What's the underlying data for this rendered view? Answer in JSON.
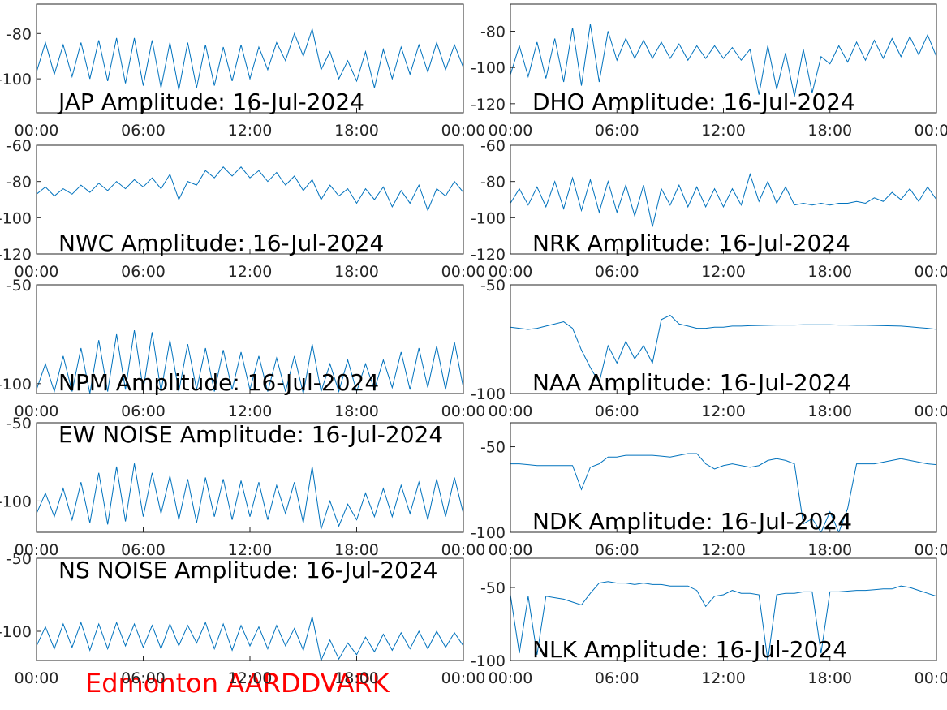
{
  "chart_data": [
    {
      "type": "line",
      "title": "JAP Amplitude: 16-Jul-2024",
      "color": "#0072bd",
      "x": [
        0,
        0.5,
        1,
        1.5,
        2,
        2.5,
        3,
        3.5,
        4,
        4.5,
        5,
        5.5,
        6,
        6.5,
        7,
        7.5,
        8,
        8.5,
        9,
        9.5,
        10,
        10.5,
        11,
        11.5,
        12,
        12.5,
        13,
        13.5,
        14,
        14.5,
        15,
        15.5,
        16,
        16.5,
        17,
        17.5,
        18,
        18.5,
        19,
        19.5,
        20,
        20.5,
        21,
        21.5,
        22,
        22.5,
        23,
        23.5,
        24
      ],
      "values": [
        -97,
        -84,
        -98,
        -85,
        -99,
        -84,
        -100,
        -83,
        -101,
        -82,
        -102,
        -82,
        -103,
        -83,
        -104,
        -84,
        -105,
        -84,
        -104,
        -85,
        -103,
        -86,
        -101,
        -85,
        -100,
        -86,
        -96,
        -84,
        -92,
        -80,
        -90,
        -78,
        -96,
        -88,
        -100,
        -92,
        -101,
        -88,
        -104,
        -87,
        -100,
        -86,
        -98,
        -85,
        -97,
        -84,
        -96,
        -85,
        -95
      ],
      "xlim": [
        0,
        24
      ],
      "xticks": [
        {
          "value": 0,
          "label": "00:00"
        },
        {
          "value": 6,
          "label": "06:00"
        },
        {
          "value": 12,
          "label": "12:00"
        },
        {
          "value": 18,
          "label": "18:00"
        },
        {
          "value": 24,
          "label": "00:00"
        }
      ],
      "ylim": [
        -115,
        -67
      ],
      "yticks": [
        -80,
        -100
      ]
    },
    {
      "type": "line",
      "title": "DHO Amplitude: 16-Jul-2024",
      "color": "#0072bd",
      "x": [
        0,
        0.5,
        1,
        1.5,
        2,
        2.5,
        3,
        3.5,
        4,
        4.5,
        5,
        5.5,
        6,
        6.5,
        7,
        7.5,
        8,
        8.5,
        9,
        9.5,
        10,
        10.5,
        11,
        11.5,
        12,
        12.5,
        13,
        13.5,
        14,
        14.5,
        15,
        15.5,
        16,
        16.5,
        17,
        17.5,
        18,
        18.5,
        19,
        19.5,
        20,
        20.5,
        21,
        21.5,
        22,
        22.5,
        23,
        23.5,
        24
      ],
      "values": [
        -104,
        -88,
        -105,
        -86,
        -106,
        -84,
        -108,
        -78,
        -110,
        -76,
        -108,
        -80,
        -96,
        -84,
        -95,
        -85,
        -95,
        -86,
        -95,
        -87,
        -96,
        -88,
        -95,
        -88,
        -95,
        -89,
        -96,
        -90,
        -115,
        -88,
        -112,
        -92,
        -116,
        -90,
        -114,
        -94,
        -98,
        -88,
        -97,
        -86,
        -96,
        -85,
        -95,
        -84,
        -94,
        -83,
        -93,
        -82,
        -94
      ],
      "xlim": [
        0,
        24
      ],
      "xticks": [
        {
          "value": 0,
          "label": "00:00"
        },
        {
          "value": 6,
          "label": "06:00"
        },
        {
          "value": 12,
          "label": "12:00"
        },
        {
          "value": 18,
          "label": "18:00"
        },
        {
          "value": 24,
          "label": "00:00"
        }
      ],
      "ylim": [
        -125,
        -65
      ],
      "yticks": [
        -80,
        -100,
        -120
      ]
    },
    {
      "type": "line",
      "title": "NWC Amplitude: 16-Jul-2024",
      "color": "#0072bd",
      "x": [
        0,
        0.5,
        1,
        1.5,
        2,
        2.5,
        3,
        3.5,
        4,
        4.5,
        5,
        5.5,
        6,
        6.5,
        7,
        7.5,
        8,
        8.5,
        9,
        9.5,
        10,
        10.5,
        11,
        11.5,
        12,
        12.5,
        13,
        13.5,
        14,
        14.5,
        15,
        15.5,
        16,
        16.5,
        17,
        17.5,
        18,
        18.5,
        19,
        19.5,
        20,
        20.5,
        21,
        21.5,
        22,
        22.5,
        23,
        23.5,
        24
      ],
      "values": [
        -87,
        -83,
        -88,
        -84,
        -87,
        -82,
        -86,
        -81,
        -85,
        -80,
        -84,
        -79,
        -83,
        -78,
        -84,
        -76,
        -90,
        -80,
        -82,
        -74,
        -78,
        -72,
        -77,
        -72,
        -78,
        -74,
        -80,
        -75,
        -82,
        -77,
        -85,
        -79,
        -90,
        -82,
        -88,
        -84,
        -92,
        -84,
        -90,
        -83,
        -94,
        -85,
        -92,
        -82,
        -96,
        -84,
        -88,
        -80,
        -86
      ],
      "xlim": [
        0,
        24
      ],
      "xticks": [
        {
          "value": 0,
          "label": "00:00"
        },
        {
          "value": 6,
          "label": "06:00"
        },
        {
          "value": 12,
          "label": "12:00"
        },
        {
          "value": 18,
          "label": "18:00"
        },
        {
          "value": 24,
          "label": "00:00"
        }
      ],
      "ylim": [
        -120,
        -60
      ],
      "yticks": [
        -60,
        -80,
        -100,
        -120
      ]
    },
    {
      "type": "line",
      "title": "NRK Amplitude: 16-Jul-2024",
      "color": "#0072bd",
      "x": [
        0,
        0.5,
        1,
        1.5,
        2,
        2.5,
        3,
        3.5,
        4,
        4.5,
        5,
        5.5,
        6,
        6.5,
        7,
        7.5,
        8,
        8.5,
        9,
        9.5,
        10,
        10.5,
        11,
        11.5,
        12,
        12.5,
        13,
        13.5,
        14,
        14.5,
        15,
        15.5,
        16,
        16.5,
        17,
        17.5,
        18,
        18.5,
        19,
        19.5,
        20,
        20.5,
        21,
        21.5,
        22,
        22.5,
        23,
        23.5,
        24
      ],
      "values": [
        -92,
        -84,
        -93,
        -83,
        -94,
        -80,
        -95,
        -78,
        -96,
        -79,
        -97,
        -80,
        -97,
        -82,
        -99,
        -82,
        -105,
        -84,
        -93,
        -82,
        -94,
        -83,
        -94,
        -84,
        -94,
        -84,
        -93,
        -76,
        -91,
        -80,
        -92,
        -83,
        -93,
        -92,
        -93,
        -92,
        -93,
        -92,
        -92,
        -91,
        -92,
        -89,
        -91,
        -86,
        -90,
        -84,
        -91,
        -83,
        -90
      ],
      "xlim": [
        0,
        24
      ],
      "xticks": [
        {
          "value": 0,
          "label": "00:00"
        },
        {
          "value": 6,
          "label": "06:00"
        },
        {
          "value": 12,
          "label": "12:00"
        },
        {
          "value": 18,
          "label": "18:00"
        },
        {
          "value": 24,
          "label": "00:00"
        }
      ],
      "ylim": [
        -120,
        -60
      ],
      "yticks": [
        -60,
        -80,
        -100,
        -120
      ]
    },
    {
      "type": "line",
      "title": "NPM Amplitude: 16-Jul-2024",
      "color": "#0072bd",
      "x": [
        0,
        0.5,
        1,
        1.5,
        2,
        2.5,
        3,
        3.5,
        4,
        4.5,
        5,
        5.5,
        6,
        6.5,
        7,
        7.5,
        8,
        8.5,
        9,
        9.5,
        10,
        10.5,
        11,
        11.5,
        12,
        12.5,
        13,
        13.5,
        14,
        14.5,
        15,
        15.5,
        16,
        16.5,
        17,
        17.5,
        18,
        18.5,
        19,
        19.5,
        20,
        20.5,
        21,
        21.5,
        22,
        22.5,
        23,
        23.5,
        24
      ],
      "values": [
        -103,
        -90,
        -104,
        -86,
        -104,
        -82,
        -105,
        -78,
        -104,
        -75,
        -103,
        -73,
        -103,
        -74,
        -104,
        -78,
        -104,
        -80,
        -103,
        -82,
        -104,
        -83,
        -103,
        -84,
        -103,
        -86,
        -104,
        -87,
        -104,
        -86,
        -105,
        -80,
        -104,
        -90,
        -104,
        -88,
        -104,
        -90,
        -103,
        -88,
        -102,
        -84,
        -103,
        -82,
        -102,
        -81,
        -103,
        -79,
        -102
      ],
      "xlim": [
        0,
        24
      ],
      "xticks": [
        {
          "value": 0,
          "label": "00:00"
        },
        {
          "value": 6,
          "label": "06:00"
        },
        {
          "value": 12,
          "label": "12:00"
        },
        {
          "value": 18,
          "label": "18:00"
        },
        {
          "value": 24,
          "label": "00:00"
        }
      ],
      "ylim": [
        -105,
        -50
      ],
      "yticks": [
        -50,
        -100
      ]
    },
    {
      "type": "line",
      "title": "NAA Amplitude: 16-Jul-2024",
      "color": "#0072bd",
      "x": [
        0,
        0.5,
        1,
        1.5,
        2,
        2.5,
        3,
        3.5,
        4,
        4.5,
        5,
        5.5,
        6,
        6.5,
        7,
        7.5,
        8,
        8.5,
        9,
        9.5,
        10,
        10.5,
        11,
        11.5,
        12,
        12.5,
        13,
        13.5,
        14,
        14.5,
        15,
        15.5,
        16,
        16.5,
        17,
        17.5,
        18,
        18.5,
        19,
        19.5,
        20,
        20.5,
        21,
        21.5,
        22,
        22.5,
        23,
        23.5,
        24
      ],
      "values": [
        -69.5,
        -70,
        -70.5,
        -70,
        -69,
        -68,
        -67,
        -70,
        -80,
        -88,
        -95,
        -78,
        -86,
        -76,
        -84,
        -78,
        -86,
        -66,
        -64,
        -68,
        -69,
        -70,
        -70,
        -69.5,
        -69.5,
        -69,
        -69,
        -68.8,
        -68.7,
        -68.6,
        -68.5,
        -68.5,
        -68.5,
        -68.4,
        -68.4,
        -68.4,
        -68.4,
        -68.5,
        -68.5,
        -68.6,
        -68.6,
        -68.7,
        -68.8,
        -68.9,
        -69,
        -69.3,
        -69.7,
        -70,
        -70.5
      ],
      "xlim": [
        0,
        24
      ],
      "xticks": [
        {
          "value": 0,
          "label": "00:00"
        },
        {
          "value": 6,
          "label": "06:00"
        },
        {
          "value": 12,
          "label": "12:00"
        },
        {
          "value": 18,
          "label": "18:00"
        },
        {
          "value": 24,
          "label": "00:00"
        }
      ],
      "ylim": [
        -100,
        -50
      ],
      "yticks": [
        -50,
        -100
      ]
    },
    {
      "type": "line",
      "title": "EW NOISE Amplitude: 16-Jul-2024",
      "color": "#0072bd",
      "x": [
        0,
        0.5,
        1,
        1.5,
        2,
        2.5,
        3,
        3.5,
        4,
        4.5,
        5,
        5.5,
        6,
        6.5,
        7,
        7.5,
        8,
        8.5,
        9,
        9.5,
        10,
        10.5,
        11,
        11.5,
        12,
        12.5,
        13,
        13.5,
        14,
        14.5,
        15,
        15.5,
        16,
        16.5,
        17,
        17.5,
        18,
        18.5,
        19,
        19.5,
        20,
        20.5,
        21,
        21.5,
        22,
        22.5,
        23,
        23.5,
        24
      ],
      "values": [
        -108,
        -95,
        -110,
        -92,
        -112,
        -88,
        -114,
        -82,
        -115,
        -78,
        -113,
        -76,
        -110,
        -82,
        -108,
        -84,
        -112,
        -86,
        -114,
        -85,
        -110,
        -86,
        -112,
        -87,
        -110,
        -88,
        -112,
        -90,
        -108,
        -88,
        -114,
        -78,
        -118,
        -100,
        -116,
        -102,
        -112,
        -95,
        -110,
        -92,
        -110,
        -90,
        -108,
        -88,
        -112,
        -86,
        -110,
        -85,
        -108
      ],
      "xlim": [
        0,
        24
      ],
      "xticks": [
        {
          "value": 0,
          "label": "00:00"
        },
        {
          "value": 6,
          "label": "06:00"
        },
        {
          "value": 12,
          "label": "12:00"
        },
        {
          "value": 18,
          "label": "18:00"
        },
        {
          "value": 24,
          "label": "00:00"
        }
      ],
      "ylim": [
        -120,
        -50
      ],
      "yticks": [
        -50,
        -100
      ]
    },
    {
      "type": "line",
      "title": "NDK Amplitude: 16-Jul-2024",
      "color": "#0072bd",
      "x": [
        0,
        0.5,
        1,
        1.5,
        2,
        2.5,
        3,
        3.5,
        4,
        4.5,
        5,
        5.5,
        6,
        6.5,
        7,
        7.5,
        8,
        8.5,
        9,
        9.5,
        10,
        10.5,
        11,
        11.5,
        12,
        12.5,
        13,
        13.5,
        14,
        14.5,
        15,
        15.5,
        16,
        16.5,
        17,
        17.5,
        18,
        18.5,
        19,
        19.5,
        20,
        20.5,
        21,
        21.5,
        22,
        22.5,
        23,
        23.5,
        24
      ],
      "values": [
        -60,
        -60,
        -60.5,
        -61,
        -61,
        -61,
        -61,
        -61,
        -75,
        -62,
        -60,
        -56,
        -56,
        -55,
        -55,
        -55,
        -55,
        -55.5,
        -56,
        -55,
        -54,
        -54,
        -60,
        -63,
        -61,
        -60,
        -61,
        -62,
        -61,
        -58,
        -57,
        -58,
        -60,
        -95,
        -92,
        -100,
        -88,
        -100,
        -86,
        -60,
        -60,
        -60,
        -59,
        -58,
        -57,
        -58,
        -59,
        -60,
        -60.5
      ],
      "xlim": [
        0,
        24
      ],
      "xticks": [
        {
          "value": 0,
          "label": "00:00"
        },
        {
          "value": 6,
          "label": "06:00"
        },
        {
          "value": 12,
          "label": "12:00"
        },
        {
          "value": 18,
          "label": "18:00"
        },
        {
          "value": 24,
          "label": "00:00"
        }
      ],
      "ylim": [
        -100,
        -36
      ],
      "yticks": [
        -50,
        -100
      ]
    },
    {
      "type": "line",
      "title": "NS NOISE Amplitude: 16-Jul-2024",
      "color": "#0072bd",
      "x": [
        0,
        0.5,
        1,
        1.5,
        2,
        2.5,
        3,
        3.5,
        4,
        4.5,
        5,
        5.5,
        6,
        6.5,
        7,
        7.5,
        8,
        8.5,
        9,
        9.5,
        10,
        10.5,
        11,
        11.5,
        12,
        12.5,
        13,
        13.5,
        14,
        14.5,
        15,
        15.5,
        16,
        16.5,
        17,
        17.5,
        18,
        18.5,
        19,
        19.5,
        20,
        20.5,
        21,
        21.5,
        22,
        22.5,
        23,
        23.5,
        24
      ],
      "values": [
        -110,
        -97,
        -112,
        -95,
        -111,
        -94,
        -113,
        -95,
        -112,
        -94,
        -110,
        -95,
        -111,
        -96,
        -112,
        -95,
        -110,
        -96,
        -108,
        -94,
        -112,
        -95,
        -113,
        -96,
        -110,
        -97,
        -112,
        -96,
        -110,
        -98,
        -113,
        -90,
        -120,
        -106,
        -119,
        -108,
        -116,
        -104,
        -114,
        -102,
        -113,
        -101,
        -112,
        -100,
        -112,
        -100,
        -111,
        -101,
        -110
      ],
      "xlim": [
        0,
        24
      ],
      "xticks": [
        {
          "value": 0,
          "label": "00:00"
        },
        {
          "value": 6,
          "label": "06:00"
        },
        {
          "value": 12,
          "label": "12:00"
        },
        {
          "value": 18,
          "label": "18:00"
        },
        {
          "value": 24,
          "label": "00:00"
        }
      ],
      "ylim": [
        -120,
        -50
      ],
      "yticks": [
        -50,
        -100
      ]
    },
    {
      "type": "line",
      "title": "NLK Amplitude: 16-Jul-2024",
      "color": "#0072bd",
      "x": [
        0,
        0.5,
        1,
        1.5,
        2,
        2.5,
        3,
        3.5,
        4,
        4.5,
        5,
        5.5,
        6,
        6.5,
        7,
        7.5,
        8,
        8.5,
        9,
        9.5,
        10,
        10.5,
        11,
        11.5,
        12,
        12.5,
        13,
        13.5,
        14,
        14.5,
        15,
        15.5,
        16,
        16.5,
        17,
        17.5,
        18,
        18.5,
        19,
        19.5,
        20,
        20.5,
        21,
        21.5,
        22,
        22.5,
        23,
        23.5,
        24
      ],
      "values": [
        -55,
        -95,
        -56,
        -96,
        -56,
        -57,
        -58,
        -60,
        -62,
        -54,
        -47,
        -46,
        -47,
        -47,
        -48,
        -47,
        -48,
        -48,
        -49,
        -49,
        -49,
        -52,
        -63,
        -56,
        -55,
        -52,
        -54,
        -54,
        -55,
        -100,
        -55,
        -54,
        -54,
        -53,
        -53,
        -95,
        -53,
        -53,
        -52.5,
        -52,
        -52,
        -51.5,
        -51,
        -51,
        -49,
        -50,
        -52,
        -54,
        -56
      ],
      "xlim": [
        0,
        24
      ],
      "xticks": [
        {
          "value": 0,
          "label": "00:00"
        },
        {
          "value": 6,
          "label": "06:00"
        },
        {
          "value": 12,
          "label": "12:00"
        },
        {
          "value": 18,
          "label": "18:00"
        },
        {
          "value": 24,
          "label": "00:00"
        }
      ],
      "ylim": [
        -100,
        -30
      ],
      "yticks": [
        -50,
        -100
      ]
    }
  ],
  "footer": "Edmonton AARDDVARK"
}
